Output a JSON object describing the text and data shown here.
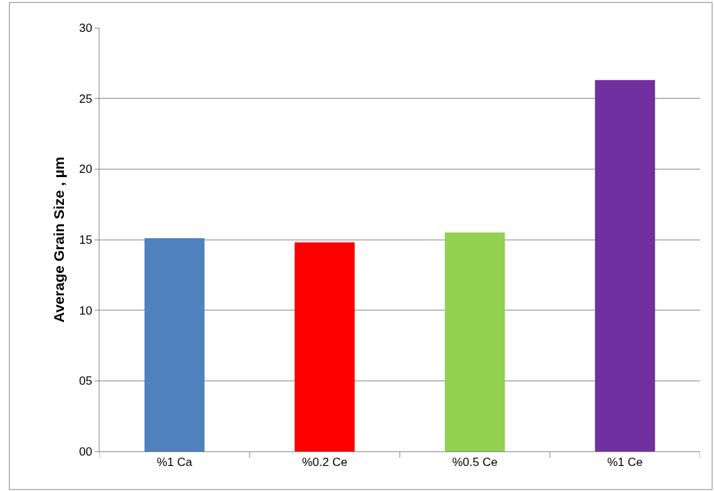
{
  "chart_data": {
    "type": "bar",
    "ylabel": "Average Grain Size , µm",
    "categories": [
      "%1 Ca",
      "%0.2 Ce",
      "%0.5 Ce",
      "%1 Ce"
    ],
    "values": [
      15.1,
      14.8,
      15.5,
      26.3
    ],
    "colors": [
      "#4f81bd",
      "#ff0000",
      "#92d050",
      "#7030a0"
    ],
    "ylim": [
      0,
      30
    ],
    "yticks": [
      {
        "value": 0,
        "label": "00"
      },
      {
        "value": 5,
        "label": "05"
      },
      10,
      15,
      20,
      25,
      30
    ],
    "grid": "y"
  }
}
